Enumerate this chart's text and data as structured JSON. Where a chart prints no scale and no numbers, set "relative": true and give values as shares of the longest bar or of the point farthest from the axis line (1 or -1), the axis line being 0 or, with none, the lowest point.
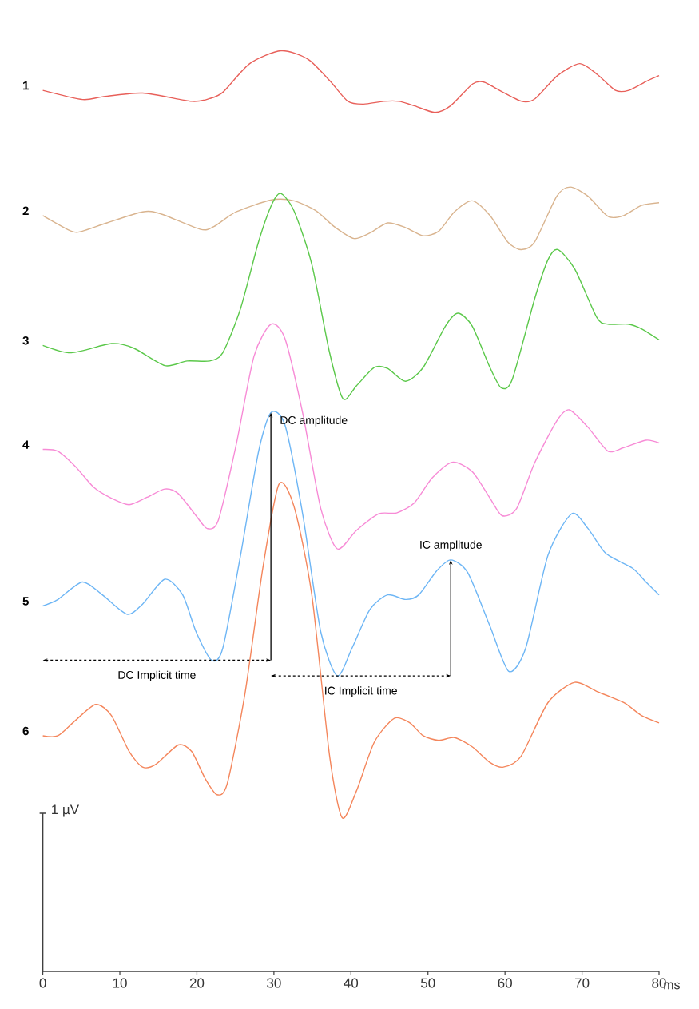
{
  "chart_data": {
    "type": "line",
    "relative": true,
    "xlabel": "ms",
    "xlim": [
      0,
      80
    ],
    "xticks": [
      0,
      10,
      20,
      30,
      40,
      50,
      60,
      70,
      80
    ],
    "grid": false,
    "marker": "none",
    "line_style": "solid",
    "series": [
      {
        "name": "1",
        "color": "#e8605a",
        "x": [
          0,
          5.16,
          7.76,
          12.97,
          19.34,
          21.65,
          23.39,
          26.86,
          30.92,
          34.39,
          37.29,
          39.61,
          41.63,
          44.23,
          46.26,
          48.29,
          50.89,
          52.91,
          55.81,
          57.25,
          59.28,
          62.18,
          63.92,
          66.81,
          69.71,
          72.02,
          74.34,
          76.07,
          78.39,
          80
        ],
        "values": [
          0.957,
          0.947,
          0.95,
          0.954,
          0.945,
          0.948,
          0.955,
          0.986,
          1,
          0.991,
          0.967,
          0.945,
          0.942,
          0.945,
          0.945,
          0.94,
          0.933,
          0.94,
          0.964,
          0.966,
          0.957,
          0.945,
          0.948,
          0.973,
          0.986,
          0.974,
          0.957,
          0.957,
          0.967,
          0.973
        ]
      },
      {
        "name": "2",
        "color": "#d9b48f",
        "x": [
          0,
          3.7,
          5.14,
          8.32,
          12.95,
          15.26,
          20.47,
          22.21,
          25.1,
          29.72,
          32.61,
          35.5,
          37.82,
          40.41,
          42.45,
          44.76,
          47.07,
          49.38,
          51.41,
          53.43,
          55.74,
          58.05,
          60.38,
          62.1,
          63.83,
          66.72,
          68.47,
          70.78,
          73.38,
          75.41,
          77.72,
          80
        ],
        "values": [
          0.821,
          0.804,
          0.804,
          0.813,
          0.825,
          0.823,
          0.806,
          0.809,
          0.825,
          0.838,
          0.837,
          0.826,
          0.809,
          0.796,
          0.802,
          0.813,
          0.808,
          0.799,
          0.804,
          0.825,
          0.837,
          0.821,
          0.792,
          0.784,
          0.792,
          0.842,
          0.852,
          0.842,
          0.82,
          0.821,
          0.832,
          0.835
        ]
      },
      {
        "name": "3",
        "color": "#5bc84a",
        "x": [
          0,
          3.7,
          8.9,
          11.8,
          15.85,
          18.73,
          21.63,
          23.36,
          25.67,
          27.99,
          29.72,
          30.88,
          32.61,
          34.92,
          37.23,
          38.97,
          40.71,
          43.03,
          44.76,
          47.07,
          49.38,
          52.27,
          53.9,
          55.74,
          58.05,
          59.5,
          60.94,
          63.83,
          65.58,
          66.85,
          69.05,
          71.94,
          73.38,
          75.98,
          77.72,
          80
        ],
        "values": [
          0.68,
          0.672,
          0.682,
          0.677,
          0.658,
          0.663,
          0.663,
          0.672,
          0.72,
          0.792,
          0.833,
          0.845,
          0.826,
          0.768,
          0.672,
          0.622,
          0.636,
          0.656,
          0.655,
          0.641,
          0.656,
          0.701,
          0.715,
          0.701,
          0.656,
          0.634,
          0.643,
          0.73,
          0.773,
          0.784,
          0.763,
          0.71,
          0.703,
          0.703,
          0.698,
          0.686
        ]
      },
      {
        "name": "4",
        "color": "#f78bd6",
        "x": [
          0,
          1.96,
          4.28,
          6.59,
          8.9,
          11.21,
          13.53,
          15.84,
          17.58,
          19.89,
          21.34,
          22.78,
          25.1,
          27.41,
          29.61,
          31.45,
          33.77,
          36.08,
          38.22,
          40.71,
          43.6,
          45.92,
          48.23,
          50.54,
          53.14,
          55.74,
          58.05,
          59.62,
          61.52,
          63.83,
          66.72,
          68.35,
          70.78,
          73.38,
          75.41,
          78.3,
          80
        ],
        "values": [
          0.567,
          0.565,
          0.548,
          0.526,
          0.514,
          0.507,
          0.515,
          0.524,
          0.519,
          0.495,
          0.481,
          0.49,
          0.572,
          0.668,
          0.703,
          0.687,
          0.605,
          0.503,
          0.459,
          0.479,
          0.497,
          0.498,
          0.509,
          0.536,
          0.553,
          0.543,
          0.514,
          0.495,
          0.503,
          0.552,
          0.598,
          0.61,
          0.591,
          0.565,
          0.569,
          0.577,
          0.574
        ]
      },
      {
        "name": "5",
        "color": "#6eb6f5",
        "x": [
          0,
          1.96,
          5.14,
          7.74,
          10.92,
          12.95,
          15.84,
          18.16,
          19.89,
          21.92,
          23.36,
          25.67,
          27.99,
          29.61,
          31.45,
          33.77,
          36.08,
          38.22,
          40.13,
          42.45,
          44.76,
          47.07,
          48.81,
          51.12,
          52.96,
          55.17,
          58.05,
          60.49,
          62.68,
          65.58,
          68.64,
          70.78,
          73.09,
          76.56,
          78.3,
          80
        ],
        "values": [
          0.397,
          0.404,
          0.423,
          0.409,
          0.388,
          0.399,
          0.426,
          0.409,
          0.369,
          0.338,
          0.351,
          0.452,
          0.564,
          0.607,
          0.593,
          0.495,
          0.369,
          0.321,
          0.351,
          0.393,
          0.409,
          0.404,
          0.409,
          0.435,
          0.447,
          0.433,
          0.375,
          0.326,
          0.351,
          0.452,
          0.497,
          0.481,
          0.454,
          0.438,
          0.423,
          0.409
        ]
      },
      {
        "name": "6",
        "color": "#f4865c",
        "x": [
          0,
          1.96,
          4.28,
          6.88,
          8.9,
          11.21,
          12.95,
          14.68,
          17.58,
          19.32,
          21.05,
          22.61,
          23.94,
          26.25,
          28.56,
          30.64,
          32.61,
          34.92,
          37.23,
          38.86,
          40.71,
          43.03,
          45.63,
          47.65,
          49.38,
          51.41,
          53.43,
          55.74,
          58.05,
          59.79,
          62.1,
          65.58,
          69.05,
          71.94,
          75.41,
          77.72,
          80
        ],
        "values": [
          0.256,
          0.256,
          0.273,
          0.29,
          0.278,
          0.239,
          0.222,
          0.225,
          0.246,
          0.239,
          0.21,
          0.192,
          0.204,
          0.302,
          0.438,
          0.529,
          0.505,
          0.409,
          0.234,
          0.167,
          0.196,
          0.249,
          0.275,
          0.27,
          0.256,
          0.251,
          0.254,
          0.244,
          0.227,
          0.222,
          0.234,
          0.292,
          0.314,
          0.304,
          0.292,
          0.278,
          0.27
        ]
      }
    ],
    "annotations": [
      {
        "text": "DC amplitude",
        "x": 29.61,
        "y": 0.607
      },
      "DC Implicit time",
      {
        "text": "IC amplitude",
        "x": 52.96,
        "y": 0.447
      },
      "IC Implicit time",
      "1 µV"
    ]
  }
}
